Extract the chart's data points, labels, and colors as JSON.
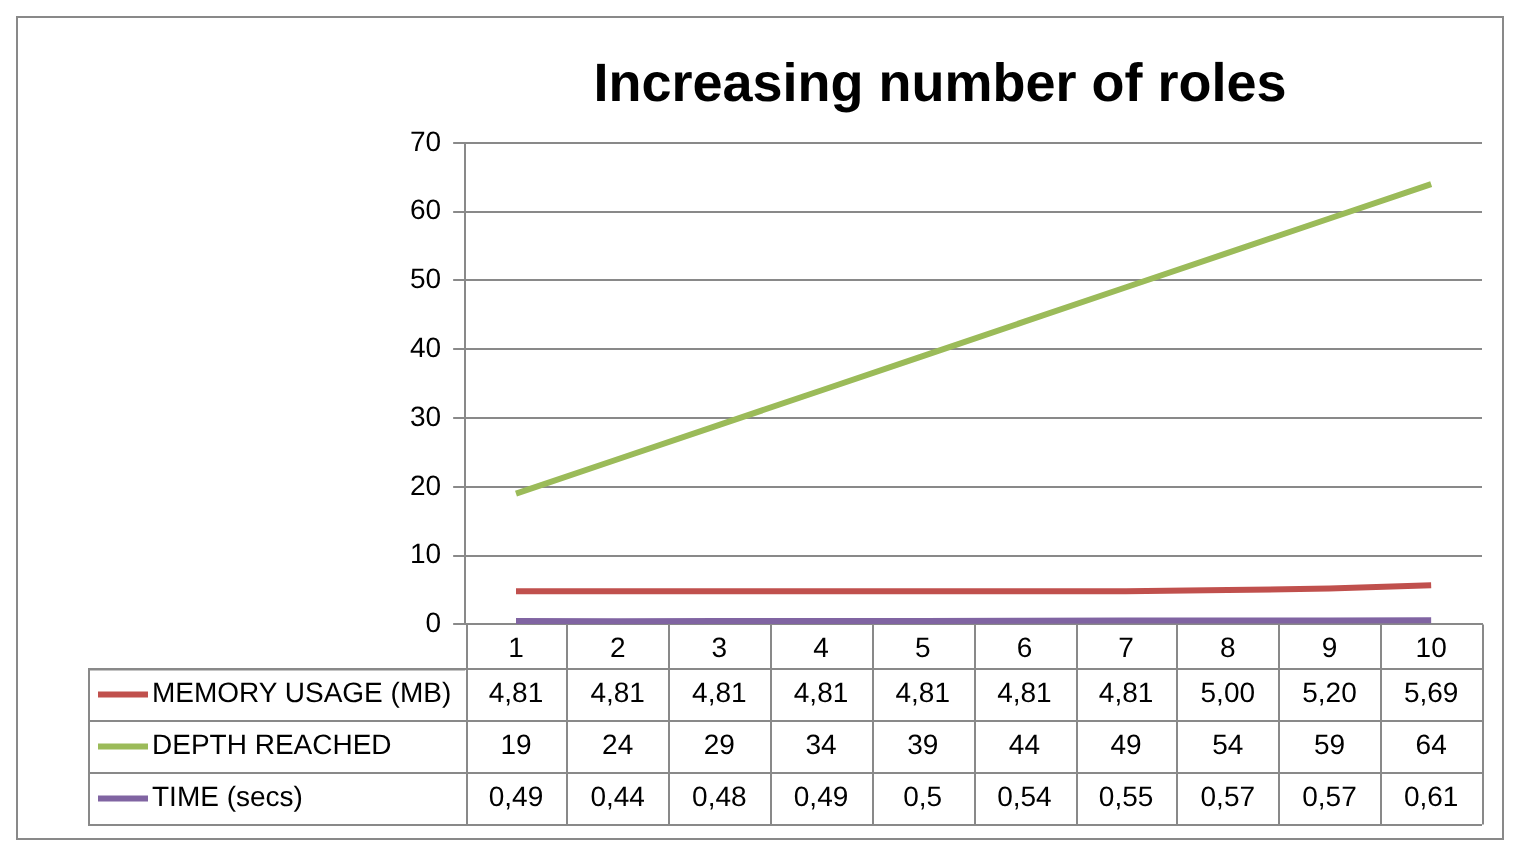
{
  "chart_data": {
    "type": "line",
    "title": "Increasing number of roles",
    "categories": [
      "1",
      "2",
      "3",
      "4",
      "5",
      "6",
      "7",
      "8",
      "9",
      "10"
    ],
    "series": [
      {
        "name": "MEMORY USAGE (MB)",
        "color": "#c0504d",
        "values": [
          4.81,
          4.81,
          4.81,
          4.81,
          4.81,
          4.81,
          4.81,
          5.0,
          5.2,
          5.69
        ],
        "value_labels": [
          "4,81",
          "4,81",
          "4,81",
          "4,81",
          "4,81",
          "4,81",
          "4,81",
          "5,00",
          "5,20",
          "5,69"
        ]
      },
      {
        "name": "DEPTH REACHED",
        "color": "#9bbb59",
        "values": [
          19,
          24,
          29,
          34,
          39,
          44,
          49,
          54,
          59,
          64
        ],
        "value_labels": [
          "19",
          "24",
          "29",
          "34",
          "39",
          "44",
          "49",
          "54",
          "59",
          "64"
        ]
      },
      {
        "name": "TIME (secs)",
        "color": "#8064a2",
        "values": [
          0.49,
          0.44,
          0.48,
          0.49,
          0.5,
          0.54,
          0.55,
          0.57,
          0.57,
          0.61
        ],
        "value_labels": [
          "0,49",
          "0,44",
          "0,48",
          "0,49",
          "0,5",
          "0,54",
          "0,55",
          "0,57",
          "0,57",
          "0,61"
        ]
      }
    ],
    "ylim": [
      0,
      70
    ],
    "yticks": [
      0,
      10,
      20,
      30,
      40,
      50,
      60,
      70
    ],
    "grid": "y",
    "legend": "bottom",
    "marker": "none",
    "line_style": "solid"
  }
}
